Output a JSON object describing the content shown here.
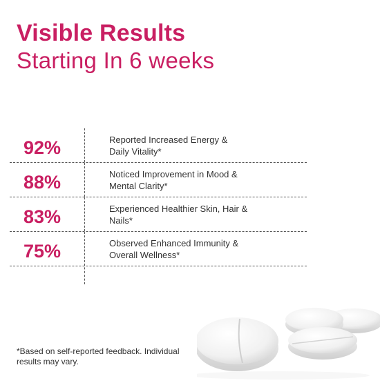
{
  "heading": {
    "line1": "Visible Results",
    "line2": "Starting In 6 weeks"
  },
  "colors": {
    "accent": "#c91f62",
    "text": "#333333"
  },
  "stats": [
    {
      "percent": "92%",
      "line1": "Reported Increased Energy &",
      "line2": "Daily Vitality*"
    },
    {
      "percent": "88%",
      "line1": "Noticed Improvement in Mood &",
      "line2": "Mental Clarity*"
    },
    {
      "percent": "83%",
      "line1": "Experienced Healthier Skin, Hair &",
      "line2": "Nails*"
    },
    {
      "percent": "75%",
      "line1": "Observed Enhanced Immunity &",
      "line2": "Overall Wellness*"
    }
  ],
  "footnote": {
    "line1": "*Based on self-reported feedback. Individual",
    "line2": "results may vary."
  },
  "image": {
    "icon": "white-tablets-image"
  }
}
